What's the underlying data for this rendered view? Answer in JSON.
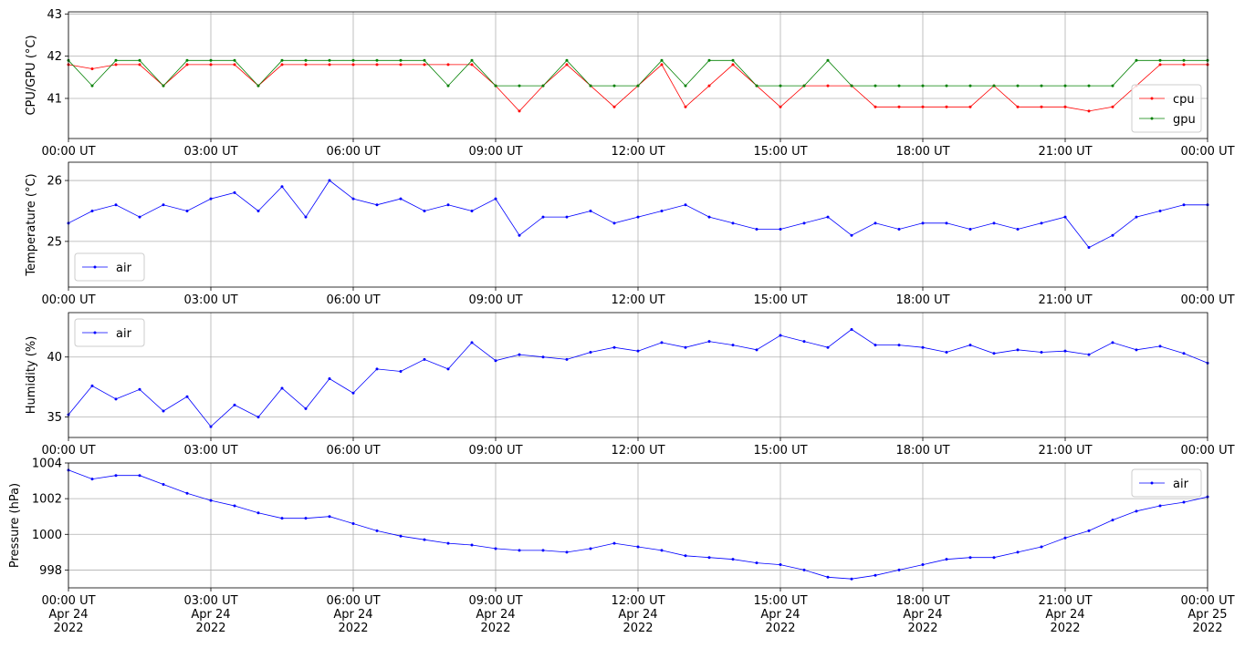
{
  "chart_data": [
    {
      "type": "line",
      "ylabel": "CPU/GPU (°C)",
      "ylim": [
        40.05,
        43.05
      ],
      "yticks": [
        41,
        42,
        43
      ],
      "x_ticks": [
        "00:00 UT",
        "03:00 UT",
        "06:00 UT",
        "09:00 UT",
        "12:00 UT",
        "15:00 UT",
        "18:00 UT",
        "21:00 UT",
        "00:00 UT"
      ],
      "grid": true,
      "legend_position": "lower-right",
      "series": [
        {
          "name": "cpu",
          "color": "#ff0000",
          "x": [
            0,
            0.5,
            1,
            1.5,
            2,
            2.5,
            3,
            3.5,
            4,
            4.5,
            5,
            5.5,
            6,
            6.5,
            7,
            7.5,
            8,
            8.5,
            9,
            9.5,
            10,
            10.5,
            11,
            11.5,
            12,
            12.5,
            13,
            13.5,
            14,
            14.5,
            15,
            15.5,
            16,
            16.5,
            17,
            17.5,
            18,
            18.5,
            19,
            19.5,
            20,
            20.5,
            21,
            21.5,
            22,
            22.5,
            23,
            23.5,
            24
          ],
          "values": [
            41.8,
            41.7,
            41.8,
            41.8,
            41.3,
            41.8,
            41.8,
            41.8,
            41.3,
            41.8,
            41.8,
            41.8,
            41.8,
            41.8,
            41.8,
            41.8,
            41.8,
            41.8,
            41.3,
            40.7,
            41.3,
            41.8,
            41.3,
            40.8,
            41.3,
            41.8,
            40.8,
            41.3,
            41.8,
            41.3,
            40.8,
            41.3,
            41.3,
            41.3,
            40.8,
            40.8,
            40.8,
            40.8,
            40.8,
            41.3,
            40.8,
            40.8,
            40.8,
            40.7,
            40.8,
            41.3,
            41.8,
            41.8,
            41.8
          ]
        },
        {
          "name": "gpu",
          "color": "#008000",
          "x": [
            0,
            0.5,
            1,
            1.5,
            2,
            2.5,
            3,
            3.5,
            4,
            4.5,
            5,
            5.5,
            6,
            6.5,
            7,
            7.5,
            8,
            8.5,
            9,
            9.5,
            10,
            10.5,
            11,
            11.5,
            12,
            12.5,
            13,
            13.5,
            14,
            14.5,
            15,
            15.5,
            16,
            16.5,
            17,
            17.5,
            18,
            18.5,
            19,
            19.5,
            20,
            20.5,
            21,
            21.5,
            22,
            22.5,
            23,
            23.5,
            24
          ],
          "values": [
            41.9,
            41.3,
            41.9,
            41.9,
            41.3,
            41.9,
            41.9,
            41.9,
            41.3,
            41.9,
            41.9,
            41.9,
            41.9,
            41.9,
            41.9,
            41.9,
            41.3,
            41.9,
            41.3,
            41.3,
            41.3,
            41.9,
            41.3,
            41.3,
            41.3,
            41.9,
            41.3,
            41.9,
            41.9,
            41.3,
            41.3,
            41.3,
            41.9,
            41.3,
            41.3,
            41.3,
            41.3,
            41.3,
            41.3,
            41.3,
            41.3,
            41.3,
            41.3,
            41.3,
            41.3,
            41.9,
            41.9,
            41.9,
            41.9
          ]
        }
      ]
    },
    {
      "type": "line",
      "ylabel": "Temperature (°C)",
      "ylim": [
        24.25,
        26.3
      ],
      "yticks": [
        25,
        26
      ],
      "x_ticks": [
        "00:00 UT",
        "03:00 UT",
        "06:00 UT",
        "09:00 UT",
        "12:00 UT",
        "15:00 UT",
        "18:00 UT",
        "21:00 UT",
        "00:00 UT"
      ],
      "grid": true,
      "legend_position": "lower-left",
      "series": [
        {
          "name": "air",
          "color": "#0000ff",
          "x": [
            0,
            0.5,
            1,
            1.5,
            2,
            2.5,
            3,
            3.5,
            4,
            4.5,
            5,
            5.5,
            6,
            6.5,
            7,
            7.5,
            8,
            8.5,
            9,
            9.5,
            10,
            10.5,
            11,
            11.5,
            12,
            12.5,
            13,
            13.5,
            14,
            14.5,
            15,
            15.5,
            16,
            16.5,
            17,
            17.5,
            18,
            18.5,
            19,
            19.5,
            20,
            20.5,
            21,
            21.5,
            22,
            22.5,
            23,
            23.5,
            24
          ],
          "values": [
            25.3,
            25.5,
            25.6,
            25.4,
            25.6,
            25.5,
            25.7,
            25.8,
            25.5,
            25.9,
            25.4,
            26.0,
            25.7,
            25.6,
            25.7,
            25.5,
            25.6,
            25.5,
            25.7,
            25.1,
            25.4,
            25.4,
            25.5,
            25.3,
            25.4,
            25.5,
            25.6,
            25.4,
            25.3,
            25.2,
            25.2,
            25.3,
            25.4,
            25.1,
            25.3,
            25.2,
            25.3,
            25.3,
            25.2,
            25.3,
            25.2,
            25.3,
            25.4,
            24.9,
            25.1,
            25.4,
            25.5,
            25.6,
            25.6
          ]
        }
      ]
    },
    {
      "type": "line",
      "ylabel": "Humidity (%)",
      "ylim": [
        33.3,
        43.7
      ],
      "yticks": [
        35,
        40
      ],
      "x_ticks": [
        "00:00 UT",
        "03:00 UT",
        "06:00 UT",
        "09:00 UT",
        "12:00 UT",
        "15:00 UT",
        "18:00 UT",
        "21:00 UT",
        "00:00 UT"
      ],
      "grid": true,
      "legend_position": "upper-left",
      "series": [
        {
          "name": "air",
          "color": "#0000ff",
          "x": [
            0,
            0.5,
            1,
            1.5,
            2,
            2.5,
            3,
            3.5,
            4,
            4.5,
            5,
            5.5,
            6,
            6.5,
            7,
            7.5,
            8,
            8.5,
            9,
            9.5,
            10,
            10.5,
            11,
            11.5,
            12,
            12.5,
            13,
            13.5,
            14,
            14.5,
            15,
            15.5,
            16,
            16.5,
            17,
            17.5,
            18,
            18.5,
            19,
            19.5,
            20,
            20.5,
            21,
            21.5,
            22,
            22.5,
            23,
            23.5,
            24
          ],
          "values": [
            35.2,
            37.6,
            36.5,
            37.3,
            35.5,
            36.7,
            34.2,
            36.0,
            35.0,
            37.4,
            35.7,
            38.2,
            37.0,
            39.0,
            38.8,
            39.8,
            39.0,
            41.2,
            39.7,
            40.2,
            40.0,
            39.8,
            40.4,
            40.8,
            40.5,
            41.2,
            40.8,
            41.3,
            41.0,
            40.6,
            41.8,
            41.3,
            40.8,
            42.3,
            41.0,
            41.0,
            40.8,
            40.4,
            41.0,
            40.3,
            40.6,
            40.4,
            40.5,
            40.2,
            41.2,
            40.6,
            40.9,
            40.3,
            39.5
          ]
        }
      ]
    },
    {
      "type": "line",
      "ylabel": "Pressure (hPa)",
      "ylim": [
        997.0,
        1004.0
      ],
      "yticks": [
        998,
        1000,
        1002,
        1004
      ],
      "x_ticks": [
        "00:00 UT\nApr 24\n2022",
        "03:00 UT\nApr 24\n2022",
        "06:00 UT\nApr 24\n2022",
        "09:00 UT\nApr 24\n2022",
        "12:00 UT\nApr 24\n2022",
        "15:00 UT\nApr 24\n2022",
        "18:00 UT\nApr 24\n2022",
        "21:00 UT\nApr 24\n2022",
        "00:00 UT\nApr 25\n2022"
      ],
      "grid": true,
      "legend_position": "upper-right",
      "series": [
        {
          "name": "air",
          "color": "#0000ff",
          "x": [
            0,
            0.5,
            1,
            1.5,
            2,
            2.5,
            3,
            3.5,
            4,
            4.5,
            5,
            5.5,
            6,
            6.5,
            7,
            7.5,
            8,
            8.5,
            9,
            9.5,
            10,
            10.5,
            11,
            11.5,
            12,
            12.5,
            13,
            13.5,
            14,
            14.5,
            15,
            15.5,
            16,
            16.5,
            17,
            17.5,
            18,
            18.5,
            19,
            19.5,
            20,
            20.5,
            21,
            21.5,
            22,
            22.5,
            23,
            23.5,
            24
          ],
          "values": [
            1003.6,
            1003.1,
            1003.3,
            1003.3,
            1002.8,
            1002.3,
            1001.9,
            1001.6,
            1001.2,
            1000.9,
            1000.9,
            1001.0,
            1000.6,
            1000.2,
            999.9,
            999.7,
            999.5,
            999.4,
            999.2,
            999.1,
            999.1,
            999.0,
            999.2,
            999.5,
            999.3,
            999.1,
            998.8,
            998.7,
            998.6,
            998.4,
            998.3,
            998.0,
            997.6,
            997.5,
            997.7,
            998.0,
            998.3,
            998.6,
            998.7,
            998.7,
            999.0,
            999.3,
            999.8,
            1000.2,
            1000.8,
            1001.3,
            1001.6,
            1001.8,
            1002.1
          ]
        }
      ]
    }
  ]
}
